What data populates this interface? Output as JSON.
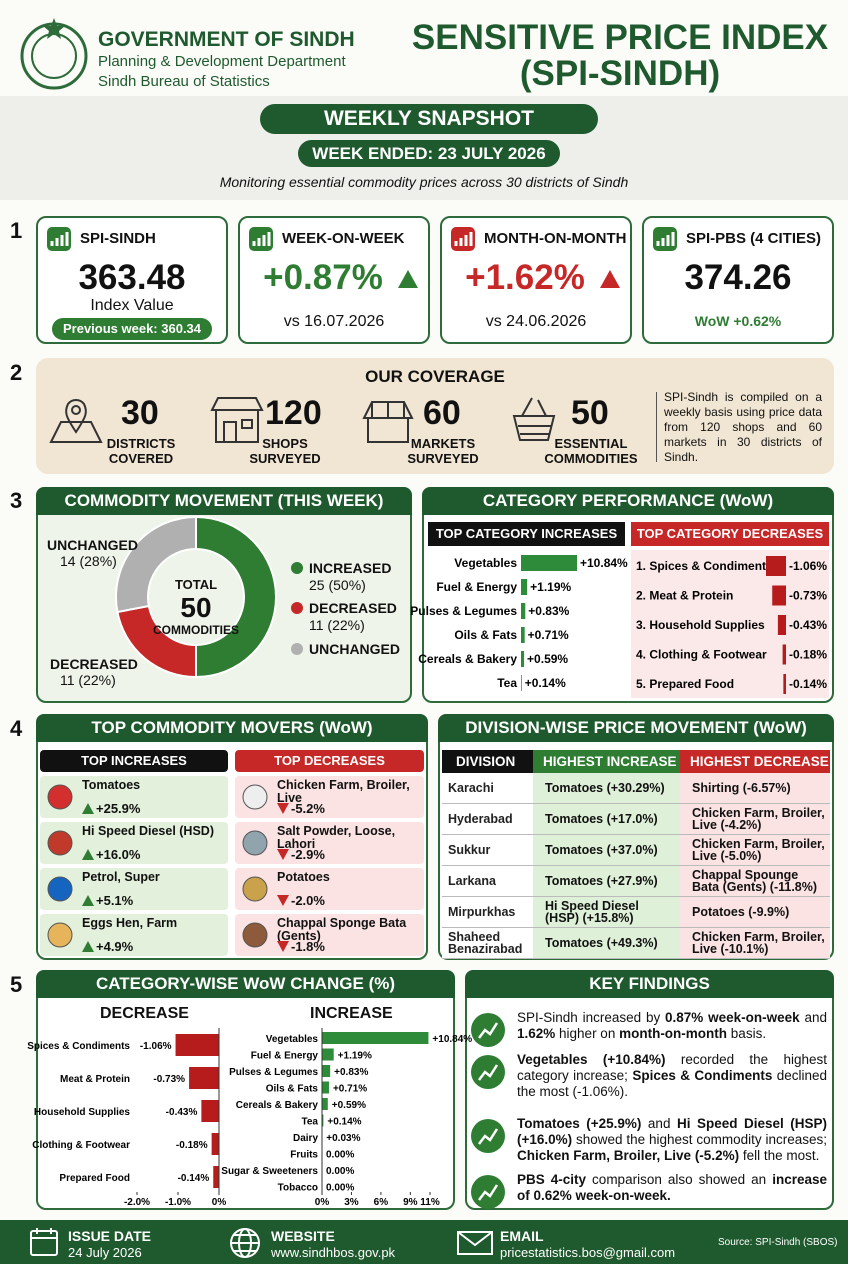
{
  "header": {
    "org": "GOVERNMENT OF SINDH",
    "dept": "Planning & Development Department",
    "bureau": "Sindh Bureau of Statistics",
    "title": "SENSITIVE PRICE INDEX",
    "subtitle": "(SPI-SINDH)"
  },
  "snapshot": {
    "label": "WEEKLY SNAPSHOT",
    "week": "WEEK ENDED: 23 JULY 2026",
    "tagline": "Monitoring essential commodity prices across 30 districts of Sindh"
  },
  "sections": [
    "1",
    "2",
    "3",
    "4",
    "5"
  ],
  "kpis": [
    {
      "title": "SPI-SINDH",
      "value": 363.48,
      "sub": "Index Value",
      "note": "Previous week: 360.34"
    },
    {
      "title": "WEEK-ON-WEEK",
      "value": "+0.87%",
      "sub": "vs 16.07.2026"
    },
    {
      "title": "MONTH-ON-MONTH",
      "value": "+1.62%",
      "sub": "vs 24.06.2026"
    },
    {
      "title": "SPI-PBS (4 CITIES)",
      "value": 374.26,
      "sub": "WoW +0.62%"
    }
  ],
  "coverage": {
    "title": "OUR COVERAGE",
    "items": [
      {
        "value": 30,
        "label": "DISTRICTS COVERED"
      },
      {
        "value": 120,
        "label": "SHOPS SURVEYED"
      },
      {
        "value": 60,
        "label": "MARKETS SURVEYED"
      },
      {
        "value": 50,
        "label": "ESSENTIAL COMMODITIES"
      }
    ],
    "note": "SPI-Sindh is compiled on a weekly basis using price data from 120 shops and 60 markets in 30 districts of Sindh."
  },
  "movement": {
    "type": "donut",
    "title": "COMMODITY MOVEMENT (THIS WEEK)",
    "center_label": "TOTAL",
    "center_value": 50,
    "center_sub": "COMMODITIES",
    "categories": [
      "INCREASED",
      "DECREASED",
      "UNCHANGED"
    ],
    "values": [
      25,
      11,
      14
    ],
    "value_labels": [
      "25 (50%)",
      "11 (22%)",
      "14 (28%)"
    ],
    "colors": [
      "#2e7d32",
      "#c62828",
      "#b0b0b0"
    ]
  },
  "category_performance": {
    "title": "CATEGORY PERFORMANCE (WoW)",
    "increases": {
      "type": "bar",
      "title": "TOP CATEGORY INCREASES",
      "categories": [
        "Vegetables",
        "Fuel & Energy",
        "Pulses & Legumes",
        "Oils & Fats",
        "Cereals & Bakery",
        "Tea"
      ],
      "values": [
        10.84,
        1.19,
        0.83,
        0.71,
        0.59,
        0.14
      ],
      "value_labels": [
        "+10.84%",
        "+1.19%",
        "+0.83%",
        "+0.71%",
        "+0.59%",
        "+0.14%"
      ],
      "color": "#2e8b3a"
    },
    "decreases": {
      "type": "bar",
      "title": "TOP CATEGORY DECREASES",
      "categories": [
        "1. Spices & Condiments",
        "2. Meat & Protein",
        "3. Household Supplies",
        "4. Clothing & Footwear",
        "5. Prepared Food"
      ],
      "values": [
        -1.06,
        -0.73,
        -0.43,
        -0.18,
        -0.14
      ],
      "value_labels": [
        "-1.06%",
        "-0.73%",
        "-0.43%",
        "-0.18%",
        "-0.14%"
      ],
      "color": "#b71c1c"
    }
  },
  "top_movers": {
    "title": "TOP COMMODITY MOVERS (WoW)",
    "increases_title": "TOP INCREASES",
    "decreases_title": "TOP DECREASES",
    "increases": [
      {
        "name": "Tomatoes",
        "change": "+25.9%"
      },
      {
        "name": "Hi Speed Diesel (HSD)",
        "change": "+16.0%"
      },
      {
        "name": "Petrol, Super",
        "change": "+5.1%"
      },
      {
        "name": "Eggs Hen, Farm",
        "change": "+4.9%"
      }
    ],
    "decreases": [
      {
        "name": "Chicken Farm, Broiler, Live",
        "change": "-5.2%"
      },
      {
        "name": "Salt Powder, Loose, Lahori",
        "change": "-2.9%"
      },
      {
        "name": "Potatoes",
        "change": "-2.0%"
      },
      {
        "name": "Chappal Sponge Bata (Gents)",
        "change": "-1.8%"
      }
    ]
  },
  "division": {
    "title": "DIVISION-WISE PRICE MOVEMENT (WoW)",
    "headers": [
      "DIVISION",
      "HIGHEST INCREASE",
      "HIGHEST DECREASE"
    ],
    "rows": [
      [
        "Karachi",
        "Tomatoes (+30.29%)",
        "Shirting (-6.57%)"
      ],
      [
        "Hyderabad",
        "Tomatoes (+17.0%)",
        "Chicken Farm, Broiler, Live (-4.2%)"
      ],
      [
        "Sukkur",
        "Tomatoes (+37.0%)",
        "Chicken Farm, Broiler, Live (-5.0%)"
      ],
      [
        "Larkana",
        "Tomatoes (+27.9%)",
        "Chappal Spounge Bata (Gents) (-11.8%)"
      ],
      [
        "Mirpurkhas",
        "Hi Speed Diesel (HSP) (+15.8%)",
        "Potatoes (-9.9%)"
      ],
      [
        "Shaheed Benazirabad",
        "Tomatoes (+49.3%)",
        "Chicken Farm, Broiler, Live (-10.1%)"
      ]
    ]
  },
  "wow_chart": {
    "title": "CATEGORY-WISE WoW CHANGE (%)",
    "decrease": {
      "type": "bar",
      "title": "DECREASE",
      "categories": [
        "Spices & Condiments",
        "Meat & Protein",
        "Household Supplies",
        "Clothing & Footwear",
        "Prepared Food"
      ],
      "values": [
        -1.06,
        -0.73,
        -0.43,
        -0.18,
        -0.14
      ],
      "value_labels": [
        "-1.06%",
        "-0.73%",
        "-0.43%",
        "-0.18%",
        "-0.14%"
      ],
      "color": "#b71c1c",
      "xlim": [
        -2,
        0
      ],
      "xticks": [
        {
          "value": -2,
          "label": "-2.0%"
        },
        {
          "value": -1,
          "label": "-1.0%"
        },
        {
          "value": 0,
          "label": "0%"
        }
      ]
    },
    "increase": {
      "type": "bar",
      "title": "INCREASE",
      "categories": [
        "Vegetables",
        "Fuel & Energy",
        "Pulses & Legumes",
        "Oils & Fats",
        "Cereals & Bakery",
        "Tea",
        "Dairy",
        "Fruits",
        "Sugar & Sweeteners",
        "Tobacco"
      ],
      "values": [
        10.84,
        1.19,
        0.83,
        0.71,
        0.59,
        0.14,
        0.03,
        0,
        0,
        0
      ],
      "value_labels": [
        "+10.84%",
        "+1.19%",
        "+0.83%",
        "+0.71%",
        "+0.59%",
        "+0.14%",
        "+0.03%",
        "0.00%",
        "0.00%",
        "0.00%"
      ],
      "color": "#2e8b3a",
      "xlim": [
        0,
        11
      ],
      "xticks": [
        {
          "value": 0,
          "label": "0%"
        },
        {
          "value": 3,
          "label": "3%"
        },
        {
          "value": 6,
          "label": "6%"
        },
        {
          "value": 9,
          "label": "9%"
        },
        {
          "value": 11,
          "label": "11%"
        }
      ]
    }
  },
  "findings": {
    "title": "KEY FINDINGS",
    "items": [
      [
        {
          "text": "SPI-Sindh increased by ",
          "bold": false
        },
        {
          "text": "0.87%",
          "bold": true
        },
        {
          "text": " week-on-week",
          "bold": true
        },
        {
          "text": " and ",
          "bold": false
        },
        {
          "text": "1.62%",
          "bold": true
        },
        {
          "text": " higher on ",
          "bold": false
        },
        {
          "text": "month-on-month",
          "bold": true
        },
        {
          "text": " basis.",
          "bold": false
        }
      ],
      [
        {
          "text": "Vegetables (+10.84%)",
          "bold": true
        },
        {
          "text": " recorded the highest category increase; ",
          "bold": false
        },
        {
          "text": "Spices & Condiments",
          "bold": true
        },
        {
          "text": " declined the most (-1.06%).",
          "bold": false
        }
      ],
      [
        {
          "text": "Tomatoes (+25.9%)",
          "bold": true
        },
        {
          "text": " and ",
          "bold": false
        },
        {
          "text": "Hi Speed Diesel (HSP) (+16.0%)",
          "bold": true
        },
        {
          "text": " showed the highest commodity increases; ",
          "bold": false
        },
        {
          "text": "Chicken Farm, Broiler, Live (-5.2%)",
          "bold": true
        },
        {
          "text": " fell the most.",
          "bold": false
        }
      ],
      [
        {
          "text": "PBS 4-city",
          "bold": true
        },
        {
          "text": " comparison also showed an ",
          "bold": false
        },
        {
          "text": "increase of 0.62% week-on-week.",
          "bold": true
        }
      ]
    ]
  },
  "footer": {
    "issue_label": "ISSUE DATE",
    "issue": "24 July 2026",
    "website_label": "WEBSITE",
    "website": "www.sindhbos.gov.pk",
    "email_label": "EMAIL",
    "email": "pricestatistics.bos@gmail.com",
    "source": "Source: SPI-Sindh (SBOS)"
  }
}
